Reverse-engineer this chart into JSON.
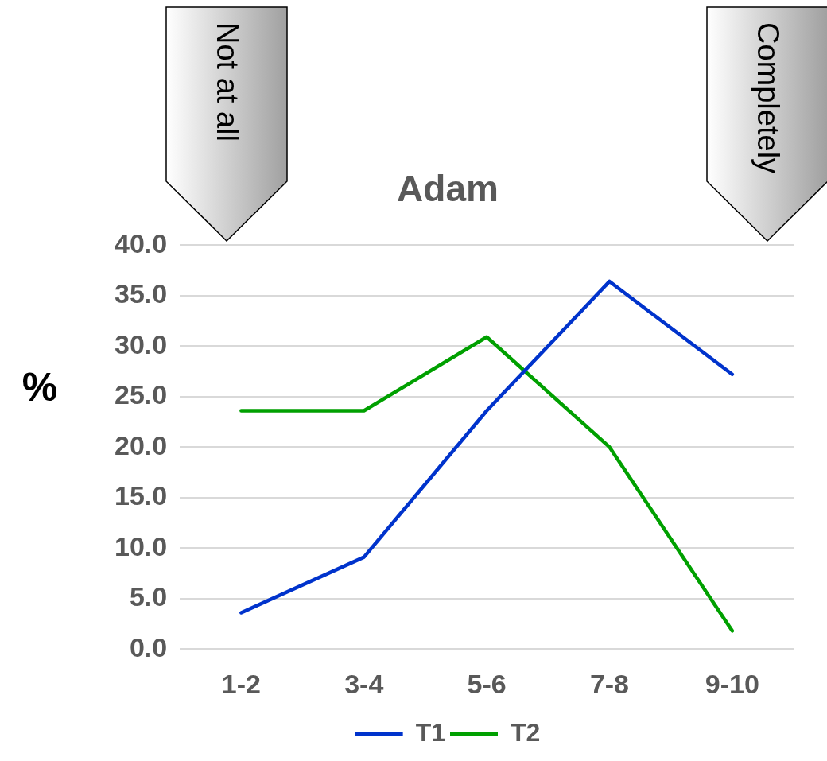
{
  "chart_data": {
    "type": "line",
    "title": "Adam",
    "ylabel": "%",
    "categories": [
      "1-2",
      "3-4",
      "5-6",
      "7-8",
      "9-10"
    ],
    "series": [
      {
        "name": "T1",
        "color": "#0033cc",
        "values": [
          3.6,
          9.1,
          23.6,
          36.4,
          27.2
        ]
      },
      {
        "name": "T2",
        "color": "#00a000",
        "values": [
          23.6,
          23.6,
          30.9,
          20.0,
          1.8
        ]
      }
    ],
    "ylim": [
      0,
      40
    ],
    "yticks": [
      {
        "value": 0,
        "label": "0.0"
      },
      {
        "value": 5,
        "label": "5.0"
      },
      {
        "value": 10,
        "label": "10.0"
      },
      {
        "value": 15,
        "label": "15.0"
      },
      {
        "value": 20,
        "label": "20.0"
      },
      {
        "value": 25,
        "label": "25.0"
      },
      {
        "value": 30,
        "label": "30.0"
      },
      {
        "value": 35,
        "label": "35.0"
      },
      {
        "value": 40,
        "label": "40.0"
      }
    ],
    "grid": "y",
    "legend": "bottom",
    "marker": "none",
    "line_style": "solid",
    "annotations": [
      "Not at all",
      "Completely"
    ]
  }
}
